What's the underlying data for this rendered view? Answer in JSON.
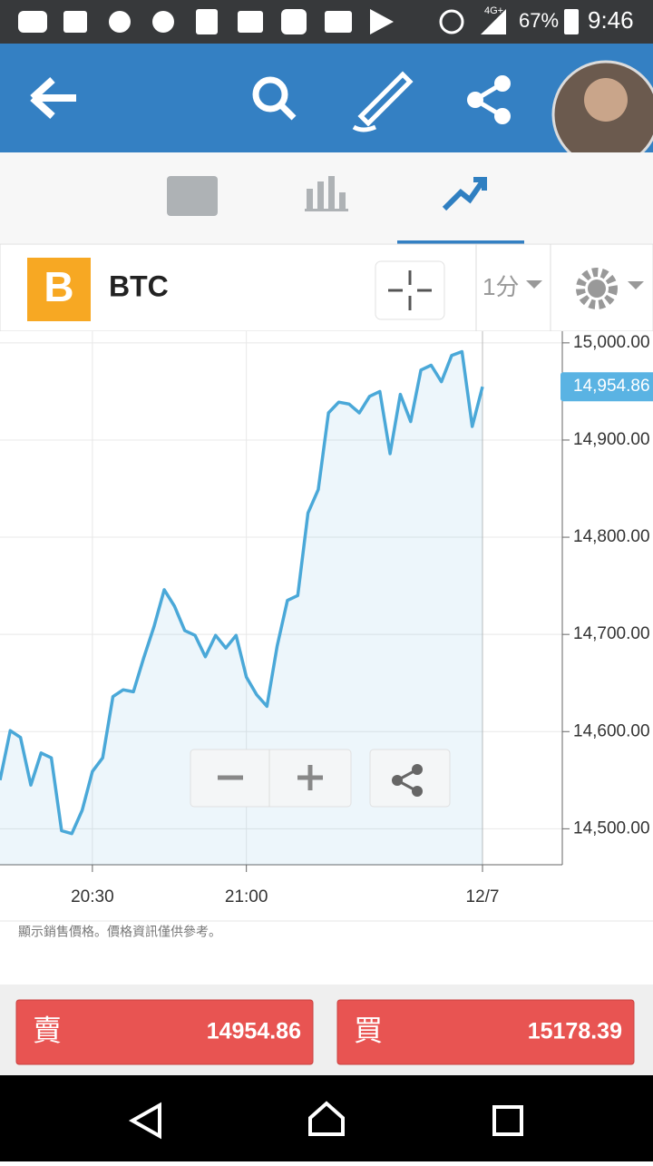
{
  "status_bar": {
    "network": "4G+",
    "battery": "67%",
    "time": "9:46"
  },
  "instrument": {
    "symbol": "BTC",
    "timeframe": "1分"
  },
  "chart_data": {
    "type": "line",
    "categories": [
      null,
      null,
      null,
      null,
      null,
      null,
      null,
      null,
      null,
      "20:30",
      null,
      null,
      null,
      null,
      null,
      null,
      null,
      null,
      null,
      null,
      null,
      null,
      null,
      null,
      "21:00",
      null,
      null,
      null,
      null,
      null,
      null,
      null,
      null,
      null,
      null,
      null,
      null,
      null,
      null,
      null,
      null,
      null,
      null,
      null,
      null,
      null,
      null,
      "12/7"
    ],
    "series": [
      {
        "color": "#4aa8d8",
        "values": [
          14550,
          14601,
          14594,
          14545,
          14578,
          14573,
          14498,
          14495,
          14519,
          14559,
          14573,
          14636,
          14643,
          14641,
          14676,
          14708,
          14746,
          14729,
          14704,
          14699,
          14677,
          14699,
          14686,
          14699,
          14656,
          14638,
          14626,
          14688,
          14735,
          14740,
          14825,
          14849,
          14928,
          14939,
          14937,
          14928,
          14945,
          14950,
          14886,
          14947,
          14919,
          14972,
          14977,
          14960,
          14987,
          14991,
          14914,
          14954.86
        ]
      }
    ],
    "last_price_label": "14,954.86",
    "ylim": [
      14463,
      15012
    ],
    "yticks": [
      {
        "value": 14500,
        "label": "14,500.00"
      },
      {
        "value": 14600,
        "label": "14,600.00"
      },
      {
        "value": 14700,
        "label": "14,700.00"
      },
      {
        "value": 14800,
        "label": "14,800.00"
      },
      {
        "value": 14900,
        "label": "14,900.00"
      },
      {
        "value": 15000,
        "label": "15,000.00"
      }
    ],
    "grid": true
  },
  "disclaimer": "顯示銷售價格。價格資訊僅供參考。",
  "trade": {
    "sell": {
      "label": "賣",
      "price": 14954.86
    },
    "buy": {
      "label": "買",
      "price": 15178.39
    }
  }
}
